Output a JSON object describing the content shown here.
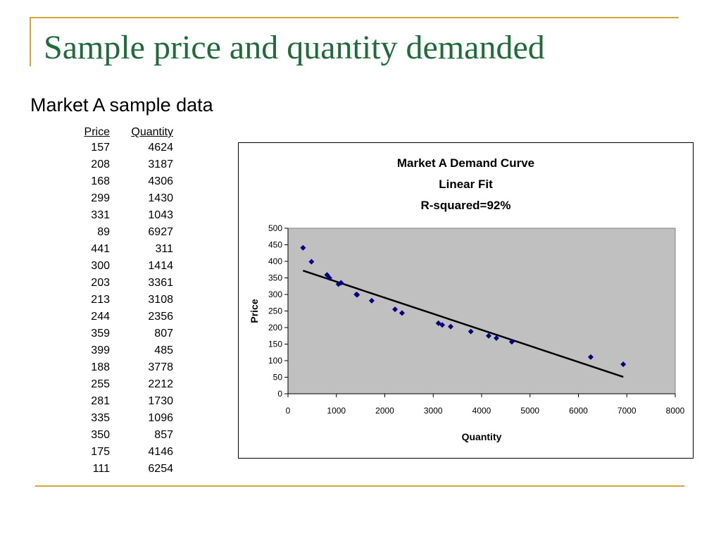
{
  "slide": {
    "title": "Sample price and quantity demanded",
    "subtitle": "Market A sample data"
  },
  "table": {
    "headers": [
      "Price",
      "Quantity"
    ],
    "rows": [
      [
        157,
        4624
      ],
      [
        208,
        3187
      ],
      [
        168,
        4306
      ],
      [
        299,
        1430
      ],
      [
        331,
        1043
      ],
      [
        89,
        6927
      ],
      [
        441,
        311
      ],
      [
        300,
        1414
      ],
      [
        203,
        3361
      ],
      [
        213,
        3108
      ],
      [
        244,
        2356
      ],
      [
        359,
        807
      ],
      [
        399,
        485
      ],
      [
        188,
        3778
      ],
      [
        255,
        2212
      ],
      [
        281,
        1730
      ],
      [
        335,
        1096
      ],
      [
        350,
        857
      ],
      [
        175,
        4146
      ],
      [
        111,
        6254
      ]
    ]
  },
  "chart_data": {
    "type": "scatter",
    "title_lines": [
      "Market A Demand Curve",
      "Linear Fit",
      "R-squared=92%"
    ],
    "xlabel": "Quantity",
    "ylabel": "Price",
    "xlim": [
      0,
      8000
    ],
    "ylim": [
      0,
      500
    ],
    "xticks": [
      0,
      1000,
      2000,
      3000,
      4000,
      5000,
      6000,
      7000,
      8000
    ],
    "yticks": [
      0,
      50,
      100,
      150,
      200,
      250,
      300,
      350,
      400,
      450,
      500
    ],
    "grid": false,
    "legend": "none",
    "plot_background": "#c0c0c0",
    "marker_color": "#000080",
    "line_color": "#000000",
    "points": [
      {
        "x": 4624,
        "y": 157
      },
      {
        "x": 3187,
        "y": 208
      },
      {
        "x": 4306,
        "y": 168
      },
      {
        "x": 1430,
        "y": 299
      },
      {
        "x": 1043,
        "y": 331
      },
      {
        "x": 6927,
        "y": 89
      },
      {
        "x": 311,
        "y": 441
      },
      {
        "x": 1414,
        "y": 300
      },
      {
        "x": 3361,
        "y": 203
      },
      {
        "x": 3108,
        "y": 213
      },
      {
        "x": 2356,
        "y": 244
      },
      {
        "x": 807,
        "y": 359
      },
      {
        "x": 485,
        "y": 399
      },
      {
        "x": 3778,
        "y": 188
      },
      {
        "x": 2212,
        "y": 255
      },
      {
        "x": 1730,
        "y": 281
      },
      {
        "x": 1096,
        "y": 335
      },
      {
        "x": 857,
        "y": 350
      },
      {
        "x": 4146,
        "y": 175
      },
      {
        "x": 6254,
        "y": 111
      }
    ],
    "fit_line": [
      {
        "x": 311,
        "y": 372
      },
      {
        "x": 6927,
        "y": 51
      }
    ]
  }
}
